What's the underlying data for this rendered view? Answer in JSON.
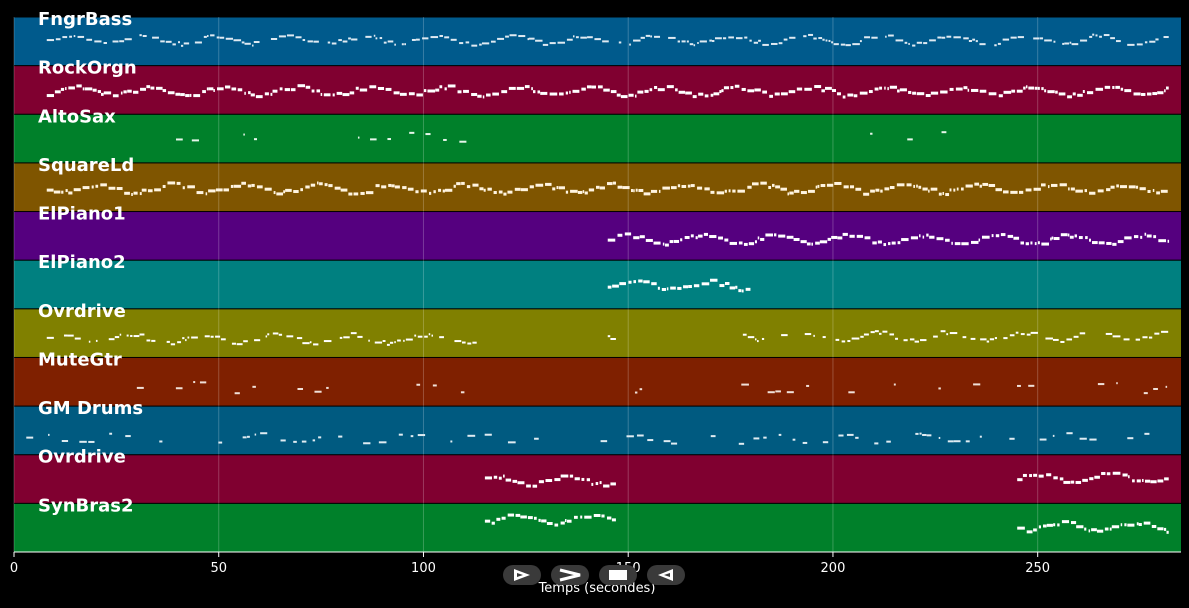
{
  "chart_data": {
    "type": "piano-roll",
    "xlabel": "Temps (secondes)",
    "xlim": [
      0,
      285
    ],
    "xticks": [
      0,
      50,
      100,
      150,
      200,
      250
    ],
    "grid": true,
    "tracks": [
      {
        "name": "FngrBass",
        "color": "#005a8c",
        "note_color": "#dfeaf2",
        "density": 0.9,
        "thickness": 2,
        "segments": [
          [
            8,
            282,
            0.45
          ]
        ]
      },
      {
        "name": "RockOrgn",
        "color": "#800030",
        "note_color": "#ffffff",
        "density": 1.0,
        "thickness": 3,
        "segments": [
          [
            8,
            282,
            0.5
          ]
        ]
      },
      {
        "name": "AltoSax",
        "color": "#00802a",
        "note_color": "#e6f6ea",
        "density": 0.6,
        "thickness": 2,
        "segments": [
          [
            30,
            60,
            0.45
          ],
          [
            84,
            113,
            0.45
          ],
          [
            203,
            232,
            0.45
          ]
        ]
      },
      {
        "name": "SquareLd",
        "color": "#7f5500",
        "note_color": "#fff4e0",
        "density": 1.0,
        "thickness": 3,
        "segments": [
          [
            8,
            282,
            0.5
          ]
        ]
      },
      {
        "name": "ElPiano1",
        "color": "#55007f",
        "note_color": "#ffffff",
        "density": 1.0,
        "thickness": 3,
        "segments": [
          [
            145,
            282,
            0.55
          ]
        ]
      },
      {
        "name": "ElPiano2",
        "color": "#008080",
        "note_color": "#ffffff",
        "density": 1.0,
        "thickness": 3,
        "segments": [
          [
            145,
            180,
            0.5
          ]
        ]
      },
      {
        "name": "Ovrdrive",
        "color": "#808000",
        "note_color": "#ffffff",
        "density": 0.8,
        "thickness": 2,
        "segments": [
          [
            8,
            113,
            0.6
          ],
          [
            145,
            147,
            0.65
          ],
          [
            178,
            282,
            0.55
          ]
        ]
      },
      {
        "name": "MuteGtr",
        "color": "#7f2000",
        "note_color": "#f0e0d8",
        "density": 0.3,
        "thickness": 2,
        "segments": [
          [
            30,
            110,
            0.6
          ],
          [
            150,
            282,
            0.6
          ]
        ]
      },
      {
        "name": "GM Drums",
        "color": "#005a80",
        "note_color": "#e0ecf2",
        "density": 0.55,
        "thickness": 2,
        "segments": [
          [
            3,
            282,
            0.65
          ]
        ]
      },
      {
        "name": "Ovrdrive",
        "color": "#800030",
        "note_color": "#ffffff",
        "density": 1.0,
        "thickness": 3,
        "segments": [
          [
            115,
            147,
            0.5
          ],
          [
            245,
            282,
            0.45
          ]
        ]
      },
      {
        "name": "SynBras2",
        "color": "#00802a",
        "note_color": "#ffffff",
        "density": 1.0,
        "thickness": 3,
        "segments": [
          [
            115,
            147,
            0.3
          ],
          [
            245,
            282,
            0.45
          ]
        ]
      }
    ]
  },
  "controls": {
    "icons": [
      "play-outline-icon",
      "fast-forward-icon",
      "stop-icon",
      "rewind-icon"
    ]
  }
}
